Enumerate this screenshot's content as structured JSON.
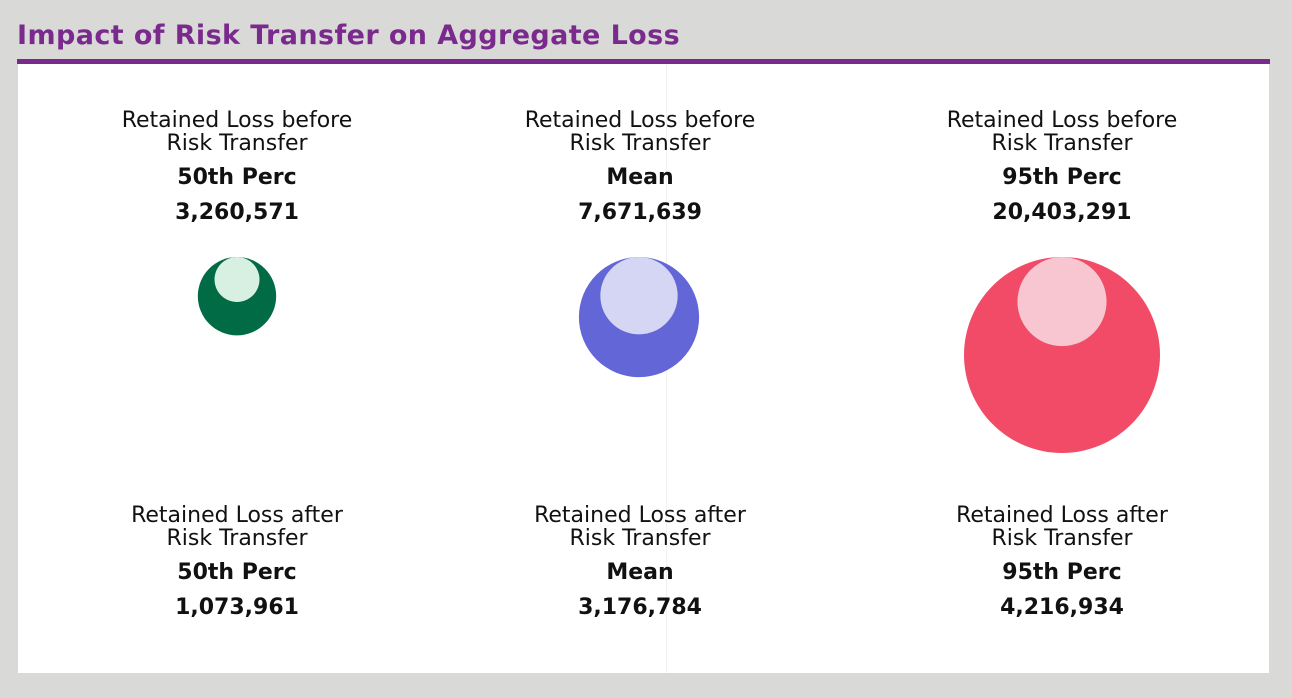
{
  "title": "Impact of Risk Transfer on Aggregate Loss",
  "colors": {
    "title": "#7a2a8c",
    "background": "#d9dad8",
    "panel": "#ffffff",
    "series": [
      "#006b45",
      "#6366d6",
      "#f14b68"
    ],
    "highlights": [
      "#d8f0e2",
      "#d5d6f4",
      "#f8c6d0"
    ]
  },
  "before": [
    {
      "label_line1": "Retained Loss before",
      "label_line2": "Risk Transfer",
      "metric": "50th Perc",
      "value_text": "3,260,571"
    },
    {
      "label_line1": "Retained Loss before",
      "label_line2": "Risk Transfer",
      "metric": "Mean",
      "value_text": "7,671,639"
    },
    {
      "label_line1": "Retained Loss before",
      "label_line2": "Risk Transfer",
      "metric": "95th Perc",
      "value_text": "20,403,291"
    }
  ],
  "after": [
    {
      "label_line1": "Retained Loss after",
      "label_line2": "Risk Transfer",
      "metric": "50th Perc",
      "value_text": "1,073,961"
    },
    {
      "label_line1": "Retained Loss after",
      "label_line2": "Risk Transfer",
      "metric": "Mean",
      "value_text": "3,176,784"
    },
    {
      "label_line1": "Retained Loss after",
      "label_line2": "Risk Transfer",
      "metric": "95th Perc",
      "value_text": "4,216,934"
    }
  ],
  "chart_data": {
    "type": "bubble",
    "title": "Impact of Risk Transfer on Aggregate Loss",
    "categories": [
      "50th Perc",
      "Mean",
      "95th Perc"
    ],
    "series": [
      {
        "name": "Retained Loss before Risk Transfer",
        "values": [
          3260571,
          7671639,
          20403291
        ]
      },
      {
        "name": "Retained Loss after Risk Transfer",
        "values": [
          1073961,
          3176784,
          4216934
        ]
      }
    ]
  }
}
